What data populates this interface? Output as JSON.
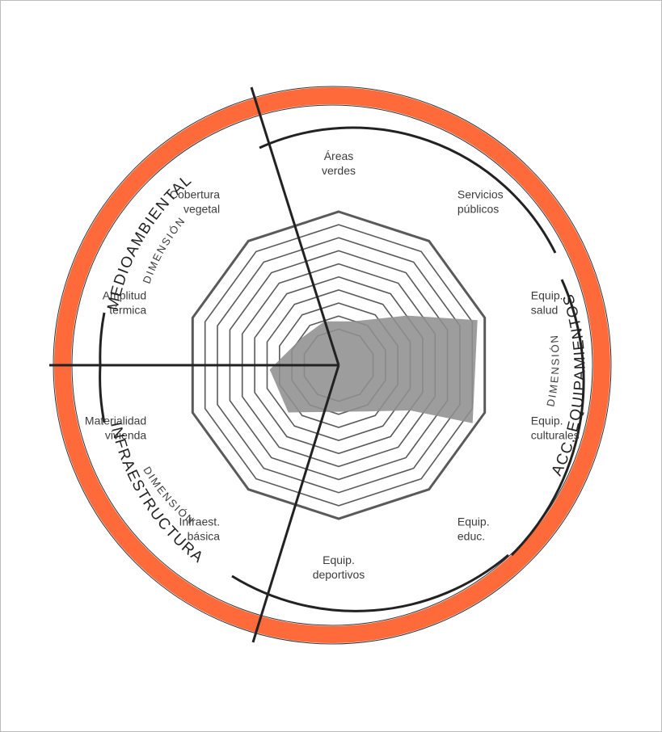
{
  "chart_data": {
    "type": "radar",
    "levels": 10,
    "axes": [
      {
        "label": [
          "Áreas",
          "verdes"
        ],
        "value": 1
      },
      {
        "label": [
          "Servicios",
          "públicos"
        ],
        "value": 1
      },
      {
        "label": [
          "Equip.",
          "salud"
        ],
        "value": 1
      },
      {
        "label": [
          "Equip.",
          "culturales"
        ],
        "value": 1
      },
      {
        "label": [
          "Equip.",
          "educ."
        ],
        "value": 1
      },
      {
        "label": [
          "Equip.",
          "deportivos"
        ],
        "value": 1
      },
      {
        "label": [
          "Infraest.",
          "básica"
        ],
        "value": 1
      },
      {
        "label": [
          "Materialidad",
          "vivienda"
        ],
        "value": 1
      },
      {
        "label": [
          "Amplitud",
          "térmica"
        ],
        "value": 1
      },
      {
        "label": [
          "Cobertura",
          "vegetal"
        ],
        "value": 1
      }
    ],
    "series_polygon": [
      [
        0.3,
        0.5
      ],
      [
        0.55,
        1.5
      ],
      [
        0.95,
        2.0
      ],
      [
        0.95,
        3.15
      ],
      [
        0.55,
        3.4
      ],
      [
        0.35,
        4.15
      ],
      [
        0.45,
        6.3
      ],
      [
        0.45,
        7.4
      ],
      [
        0.3,
        8.5
      ],
      [
        0.3,
        9.5
      ]
    ]
  },
  "dimensions": {
    "medioambiental": {
      "small": "DIMENSIÓN",
      "big": "MEDIOAMBIENTAL"
    },
    "equipamientos": {
      "small": "DIMENSIÓN",
      "big": "ACC. EQUIPAMIENTOS"
    },
    "infraestructura": {
      "small": "DIMENSIÓN",
      "big": "INFRAESTRUCTURA"
    }
  },
  "colors": {
    "outer_ring": "#fe6a3a",
    "web": "#5a5a5a",
    "fill": "#8f8f8f",
    "divider": "#222222"
  }
}
